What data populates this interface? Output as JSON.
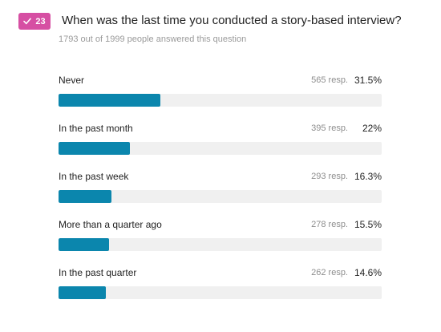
{
  "question": {
    "number": "23",
    "title": "When was the last time you conducted a story-based interview?",
    "answered_summary": "1793 out of 1999 people answered this question"
  },
  "colors": {
    "badge": "#d64fa3",
    "bar_fill": "#0b86ad",
    "bar_track": "#f0f0f0"
  },
  "icons": {
    "badge_icon": "checkmark-icon"
  },
  "chart_data": {
    "type": "bar",
    "orientation": "horizontal",
    "categories": [
      "Never",
      "In the past month",
      "In the past week",
      "More than a quarter ago",
      "In the past quarter"
    ],
    "values": [
      31.5,
      22,
      16.3,
      15.5,
      14.6
    ],
    "responses": [
      565,
      395,
      293,
      278,
      262
    ],
    "response_labels": [
      "565 resp.",
      "395 resp.",
      "293 resp.",
      "278 resp.",
      "262 resp."
    ],
    "percent_labels": [
      "31.5%",
      "22%",
      "16.3%",
      "15.5%",
      "14.6%"
    ],
    "xlim": [
      0,
      100
    ],
    "grid": false
  }
}
